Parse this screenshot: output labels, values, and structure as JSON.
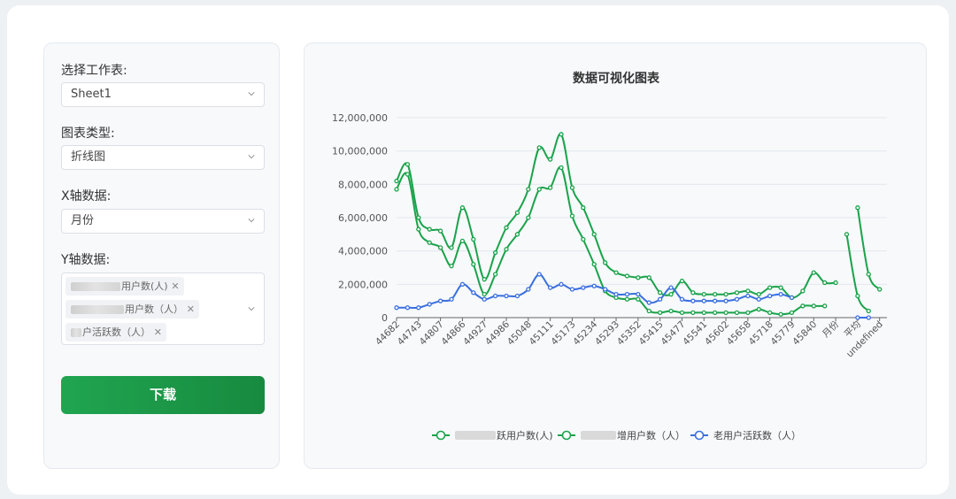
{
  "controls": {
    "sheet_label": "选择工作表:",
    "sheet_value": "Sheet1",
    "chart_type_label": "图表类型:",
    "chart_type_value": "折线图",
    "x_label": "X轴数据:",
    "x_value": "月份",
    "y_label": "Y轴数据:",
    "y_tags": [
      "用户数(人)",
      "用户数（人）",
      "户活跃数（人）"
    ],
    "download_label": "下载"
  },
  "colors": {
    "green": "#1aa34a",
    "blue": "#3b6fe0",
    "grid": "#e4e8ee",
    "axis": "#666666"
  },
  "chart_data": {
    "type": "line",
    "title": "数据可视化图表",
    "ylim": [
      0,
      12000000
    ],
    "y_ticks": [
      0,
      2000000,
      4000000,
      6000000,
      8000000,
      10000000,
      12000000
    ],
    "y_tick_labels": [
      "0",
      "2,000,000",
      "4,000,000",
      "6,000,000",
      "8,000,000",
      "10,000,000",
      "12,000,000"
    ],
    "x_tick_labels": [
      "44682",
      "44743",
      "44807",
      "44866",
      "44927",
      "44986",
      "45048",
      "45111",
      "45173",
      "45234",
      "45293",
      "45352",
      "45415",
      "45477",
      "45541",
      "45602",
      "45658",
      "45718",
      "45779",
      "45840",
      "月份",
      "平均",
      "undefined"
    ],
    "grid": true,
    "legend_position": "bottom",
    "series": [
      {
        "name": "跃用户数(人)",
        "color_key": "green",
        "values": [
          8200000,
          9200000,
          6000000,
          5300000,
          5200000,
          4200000,
          6600000,
          4700000,
          2300000,
          3900000,
          5400000,
          6300000,
          7700000,
          10200000,
          9500000,
          11000000,
          7800000,
          6600000,
          5000000,
          3300000,
          2700000,
          2500000,
          2400000,
          2400000,
          1500000,
          1400000,
          2200000,
          1500000,
          1400000,
          1400000,
          1400000,
          1500000,
          1600000,
          1400000,
          1800000,
          1800000,
          1200000,
          1600000,
          2700000,
          2100000,
          2100000,
          null,
          6600000,
          2600000,
          1700000
        ],
        "x_slots": [
          0,
          1,
          2,
          3,
          4,
          5,
          6,
          7,
          8,
          9,
          10,
          11,
          12,
          13,
          14,
          15,
          16,
          17,
          18,
          19,
          20,
          21,
          22,
          23,
          24,
          25,
          26,
          27,
          28,
          29,
          30,
          31,
          32,
          33,
          34,
          35,
          36,
          37,
          38,
          39,
          40,
          41,
          42,
          43,
          44
        ]
      },
      {
        "name": "增用户数（人）",
        "color_key": "green",
        "values": [
          7700000,
          8600000,
          5300000,
          4500000,
          4200000,
          3100000,
          4600000,
          3200000,
          1400000,
          2600000,
          4100000,
          5000000,
          6000000,
          7700000,
          7800000,
          9000000,
          6100000,
          4700000,
          3200000,
          1600000,
          1200000,
          1100000,
          1100000,
          400000,
          300000,
          400000,
          300000,
          300000,
          300000,
          300000,
          300000,
          300000,
          300000,
          500000,
          300000,
          200000,
          300000,
          700000,
          700000,
          700000,
          null,
          5000000,
          1300000,
          400000
        ],
        "x_slots": [
          0,
          1,
          2,
          3,
          4,
          5,
          6,
          7,
          8,
          9,
          10,
          11,
          12,
          13,
          14,
          15,
          16,
          17,
          18,
          19,
          20,
          21,
          22,
          23,
          24,
          25,
          26,
          27,
          28,
          29,
          30,
          31,
          32,
          33,
          34,
          35,
          36,
          37,
          38,
          39,
          40,
          41,
          42,
          43
        ]
      },
      {
        "name": "老用户活跃数（人）",
        "color_key": "blue",
        "values": [
          600000,
          600000,
          600000,
          800000,
          1000000,
          1100000,
          2000000,
          1500000,
          1100000,
          1300000,
          1300000,
          1300000,
          1700000,
          2600000,
          1800000,
          2000000,
          1700000,
          1800000,
          1900000,
          1700000,
          1400000,
          1400000,
          1400000,
          900000,
          1100000,
          1800000,
          1100000,
          1000000,
          1000000,
          1000000,
          1000000,
          1100000,
          1300000,
          1100000,
          1300000,
          1400000,
          1200000,
          null,
          null,
          null,
          null,
          null,
          0,
          0
        ],
        "x_slots": [
          0,
          1,
          2,
          3,
          4,
          5,
          6,
          7,
          8,
          9,
          10,
          11,
          12,
          13,
          14,
          15,
          16,
          17,
          18,
          19,
          20,
          21,
          22,
          23,
          24,
          25,
          26,
          27,
          28,
          29,
          30,
          31,
          32,
          33,
          34,
          35,
          36,
          37,
          38,
          39,
          40,
          41,
          42,
          43
        ]
      }
    ]
  }
}
